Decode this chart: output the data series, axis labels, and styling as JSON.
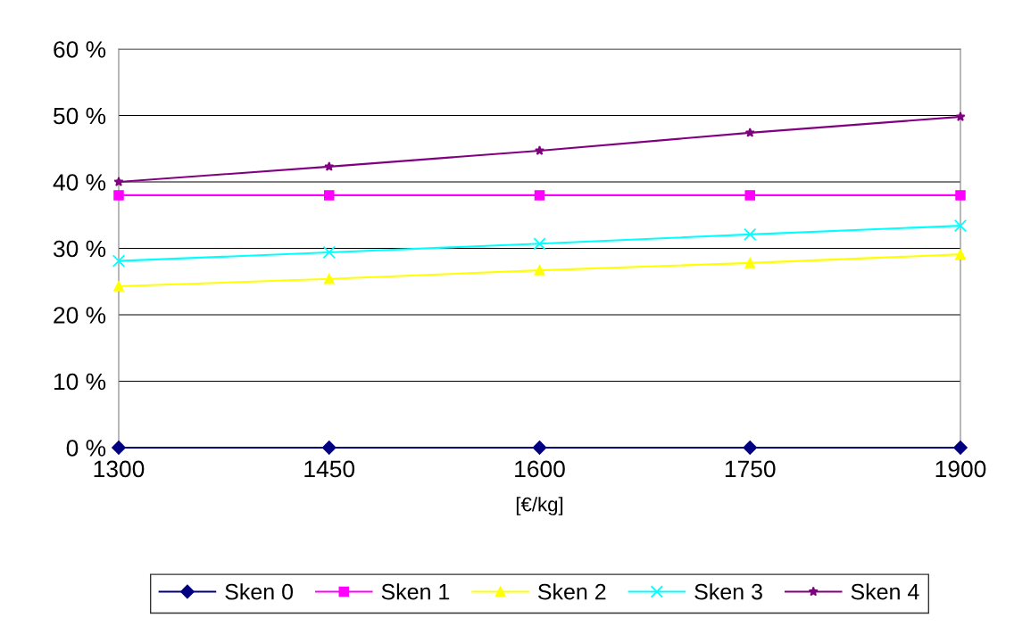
{
  "chart_data": {
    "type": "line",
    "xlabel": "[€/kg]",
    "x": [
      1300,
      1450,
      1600,
      1750,
      1900
    ],
    "xlim": [
      1300,
      1900
    ],
    "xticks": [
      1300,
      1450,
      1600,
      1750,
      1900
    ],
    "ylim": [
      0,
      60
    ],
    "yticks": [
      {
        "value": 0,
        "label": "0 %"
      },
      {
        "value": 10,
        "label": "10 %"
      },
      {
        "value": 20,
        "label": "20 %"
      },
      {
        "value": 30,
        "label": "30 %"
      },
      {
        "value": 40,
        "label": "40 %"
      },
      {
        "value": 50,
        "label": "50 %"
      },
      {
        "value": 60,
        "label": "60 %"
      }
    ],
    "grid": "y",
    "legend": "bottom",
    "series": [
      {
        "name": "Sken 0",
        "color": "#000080",
        "marker": "diamond",
        "values": [
          0,
          0,
          0,
          0,
          0
        ]
      },
      {
        "name": "Sken 1",
        "color": "#ff00ff",
        "marker": "square",
        "values": [
          38,
          38,
          38,
          38,
          38
        ]
      },
      {
        "name": "Sken 2",
        "color": "#ffff00",
        "marker": "triangle",
        "values": [
          24.3,
          25.4,
          26.7,
          27.8,
          29.1
        ]
      },
      {
        "name": "Sken 3",
        "color": "#00ffff",
        "marker": "cross",
        "values": [
          28.1,
          29.4,
          30.7,
          32.1,
          33.4
        ]
      },
      {
        "name": "Sken 4",
        "color": "#800080",
        "marker": "star",
        "values": [
          40,
          42.3,
          44.7,
          47.4,
          49.8
        ]
      }
    ]
  }
}
